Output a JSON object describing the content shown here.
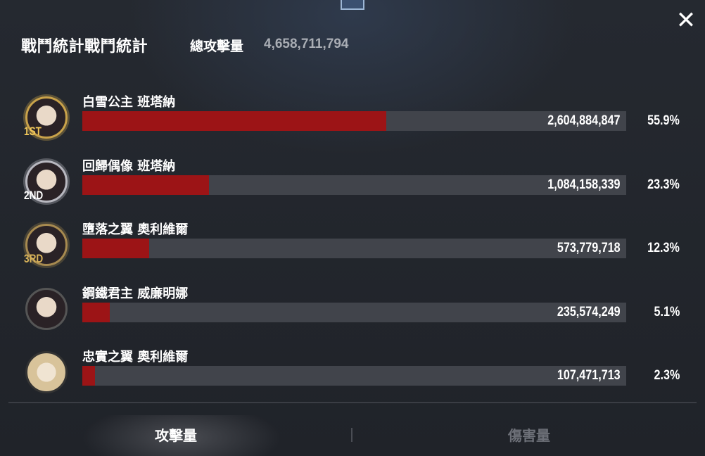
{
  "header": {
    "title": "戰鬥統計戰鬥統計",
    "total_label": "總攻擊量",
    "total_value": "4,658,711,794",
    "close_icon": "close-icon"
  },
  "colors": {
    "bar_fill": "#9c1416",
    "bar_track": "#41444b",
    "background": "#22252c"
  },
  "rows": [
    {
      "rank": "1ST",
      "name": "白雪公主 班塔納",
      "value": "2,604,884,847",
      "percent": "55.9%",
      "fill_percent": 55.9
    },
    {
      "rank": "2ND",
      "name": "回歸偶像 班塔納",
      "value": "1,084,158,339",
      "percent": "23.3%",
      "fill_percent": 23.3
    },
    {
      "rank": "3RD",
      "name": "墮落之翼 奧利維爾",
      "value": "573,779,718",
      "percent": "12.3%",
      "fill_percent": 12.3
    },
    {
      "rank": "",
      "name": "鋼鐵君主 威廉明娜",
      "value": "235,574,249",
      "percent": "5.1%",
      "fill_percent": 5.1
    },
    {
      "rank": "",
      "name": "忠實之翼 奧利維爾",
      "value": "107,471,713",
      "percent": "2.3%",
      "fill_percent": 2.3
    }
  ],
  "tabs": [
    {
      "label": "攻擊量",
      "active": true
    },
    {
      "label": "傷害量",
      "active": false
    }
  ]
}
